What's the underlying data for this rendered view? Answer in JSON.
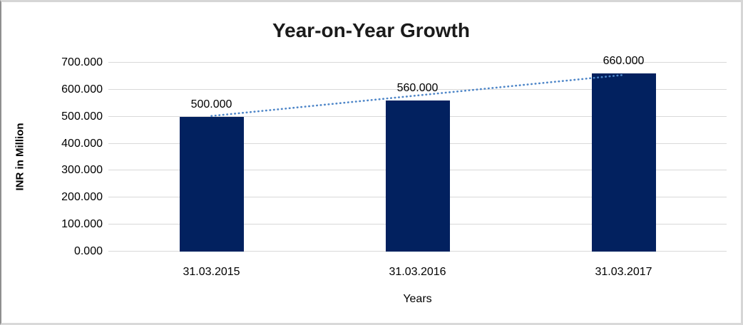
{
  "window": {
    "background": "#FFFFFF",
    "border_color": "#D6D6D6",
    "border_left_color": "#8F8F8F"
  },
  "chart_data": {
    "type": "bar",
    "title": "Year-on-Year Growth",
    "xlabel": "Years",
    "ylabel": "INR in Million",
    "categories": [
      "31.03.2015",
      "31.03.2016",
      "31.03.2017"
    ],
    "values": [
      500,
      560,
      660
    ],
    "value_labels": [
      "500.000",
      "560.000",
      "660.000"
    ],
    "yticks": [
      "0.000",
      "100.000",
      "200.000",
      "300.000",
      "400.000",
      "500.000",
      "600.000",
      "700.000"
    ],
    "ylim": [
      0,
      700
    ],
    "grid": true,
    "legend_position": "none",
    "bar_color": "#02215F",
    "gridline_color": "#D9D9D9",
    "trendline": {
      "type": "linear",
      "style": "dotted",
      "color": "#4E86C8",
      "from_value": 500,
      "to_value": 660
    }
  }
}
